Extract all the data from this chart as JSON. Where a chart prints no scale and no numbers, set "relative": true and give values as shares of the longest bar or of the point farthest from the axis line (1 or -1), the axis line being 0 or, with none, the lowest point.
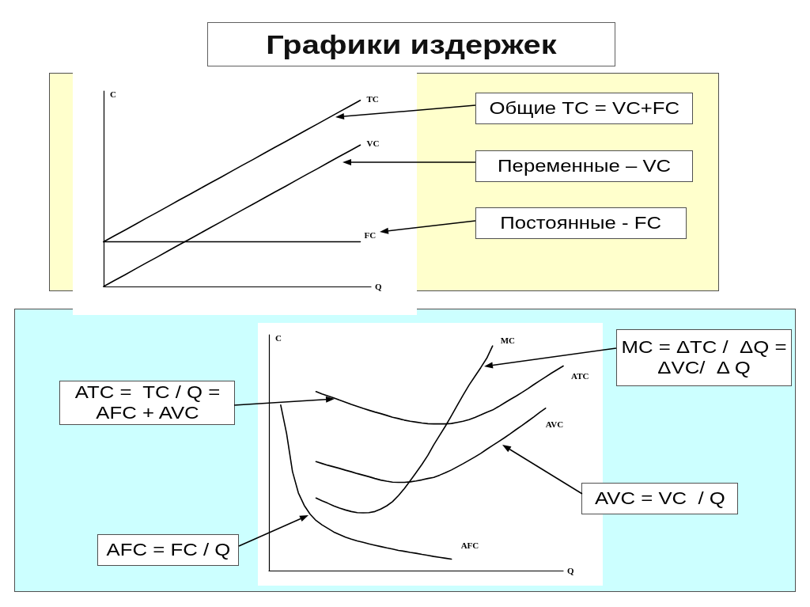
{
  "chart_data": [
    {
      "type": "line",
      "title": "Графики издержек",
      "xlabel": "Q",
      "ylabel": "C",
      "relative": true,
      "marker": "none",
      "line_style": "solid",
      "categories": [
        null,
        null,
        null,
        null,
        null,
        null,
        null,
        null,
        null,
        null,
        null,
        null,
        null,
        null,
        null,
        null,
        null,
        null,
        null,
        null,
        null,
        null,
        null,
        null,
        null,
        null
      ],
      "series": [
        {
          "name": "TC",
          "color": "#000000",
          "values": [
            0.24,
            0.272,
            0.303,
            0.335,
            0.367,
            0.398,
            0.43,
            0.462,
            0.493,
            0.525,
            0.557,
            0.588,
            0.62,
            0.652,
            0.683,
            0.715,
            0.747,
            0.778,
            0.81,
            0.842,
            0.873,
            0.905,
            0.937,
            0.968,
            1,
            null
          ]
        },
        {
          "name": "VC",
          "color": "#000000",
          "values": [
            0,
            0.032,
            0.063,
            0.095,
            0.127,
            0.158,
            0.19,
            0.222,
            0.253,
            0.285,
            0.317,
            0.348,
            0.38,
            0.412,
            0.443,
            0.475,
            0.507,
            0.538,
            0.57,
            0.602,
            0.633,
            0.665,
            0.697,
            0.728,
            0.76,
            null
          ]
        },
        {
          "name": "FC",
          "color": "#000000",
          "values": [
            0.24,
            0.24,
            0.24,
            0.24,
            0.24,
            0.24,
            0.24,
            0.24,
            0.24,
            0.24,
            0.24,
            0.24,
            0.24,
            0.24,
            0.24,
            0.24,
            0.24,
            0.24,
            0.24,
            0.24,
            0.24,
            0.24,
            0.24,
            0.24,
            0.24,
            null
          ]
        }
      ],
      "annotations": [
        "Общие TC = VC+FC",
        "Переменные – VC",
        "Постоянные - FC"
      ]
    },
    {
      "type": "line",
      "xlabel": "Q",
      "ylabel": "C",
      "relative": true,
      "marker": "none",
      "line_style": "solid",
      "categories": [
        null,
        null,
        null,
        null,
        null,
        null,
        null,
        null,
        null,
        null,
        null,
        null,
        null,
        null,
        null,
        null,
        null,
        null,
        null,
        null,
        null,
        null,
        null,
        null,
        null,
        null,
        null,
        null,
        null,
        null,
        null,
        null,
        null,
        null,
        null,
        null,
        null,
        null,
        null,
        null,
        null,
        null,
        null,
        null,
        null,
        null,
        null,
        null,
        null,
        null,
        null
      ],
      "series": [
        {
          "name": "MC",
          "color": "#000000",
          "values": [
            null,
            null,
            null,
            null,
            null,
            null,
            null,
            null,
            0.323,
            0.311,
            0.3,
            0.288,
            0.278,
            0.27,
            0.263,
            0.258,
            0.257,
            0.258,
            0.263,
            0.274,
            0.288,
            0.307,
            0.334,
            0.365,
            0.4,
            0.436,
            0.473,
            0.513,
            0.56,
            0.602,
            0.644,
            0.689,
            0.736,
            0.782,
            0.826,
            0.865,
            0.904,
            0.945,
            1,
            null,
            null,
            null,
            null,
            null,
            null,
            null,
            null,
            null,
            null,
            null,
            null
          ]
        },
        {
          "name": "ATC",
          "color": "#000000",
          "values": [
            null,
            null,
            null,
            null,
            null,
            null,
            null,
            null,
            0.797,
            0.787,
            0.778,
            0.769,
            0.759,
            0.75,
            0.74,
            0.731,
            0.722,
            0.714,
            0.706,
            0.699,
            0.691,
            0.683,
            0.677,
            0.67,
            0.665,
            0.661,
            0.657,
            0.654,
            0.653,
            0.653,
            0.653,
            0.655,
            0.66,
            0.665,
            0.672,
            0.682,
            0.693,
            0.705,
            0.715,
            0.73,
            0.746,
            0.762,
            0.777,
            0.793,
            0.81,
            0.828,
            0.845,
            0.862,
            0.879,
            0.895,
            0.911
          ]
        },
        {
          "name": "AVC",
          "color": "#000000",
          "values": [
            null,
            null,
            null,
            null,
            null,
            null,
            null,
            null,
            0.485,
            0.477,
            0.469,
            0.462,
            0.455,
            0.447,
            0.44,
            0.432,
            0.425,
            0.418,
            0.41,
            0.403,
            0.398,
            0.394,
            0.393,
            0.393,
            0.395,
            0.399,
            0.404,
            0.41,
            0.415,
            0.425,
            0.436,
            0.448,
            0.462,
            0.476,
            0.491,
            0.506,
            0.522,
            0.54,
            0.557,
            0.574,
            0.591,
            0.609,
            0.628,
            0.646,
            0.665,
            0.684,
            0.704,
            0.723,
            null,
            null,
            null
          ]
        },
        {
          "name": "AFC",
          "color": "#000000",
          "values": [
            null,
            null,
            0.737,
            0.61,
            0.441,
            0.346,
            0.29,
            0.251,
            0.223,
            0.204,
            0.188,
            0.172,
            0.16,
            0.149,
            0.14,
            0.132,
            0.126,
            0.119,
            0.113,
            0.107,
            0.101,
            0.096,
            0.09,
            0.086,
            0.081,
            0.077,
            0.072,
            0.068,
            0.063,
            0.059,
            0.055,
            0.051,
            null,
            null,
            null,
            null,
            null,
            null,
            null,
            null,
            null,
            null,
            null,
            null,
            null,
            null,
            null,
            null,
            null,
            null,
            null
          ]
        }
      ],
      "annotations": [
        "MC = ΔTC /  ΔQ = ΔVC/  Δ Q",
        "ATC =  TC / Q = AFC + AVC",
        "AVC = VC  / Q",
        "AFC = FC / Q"
      ]
    }
  ]
}
